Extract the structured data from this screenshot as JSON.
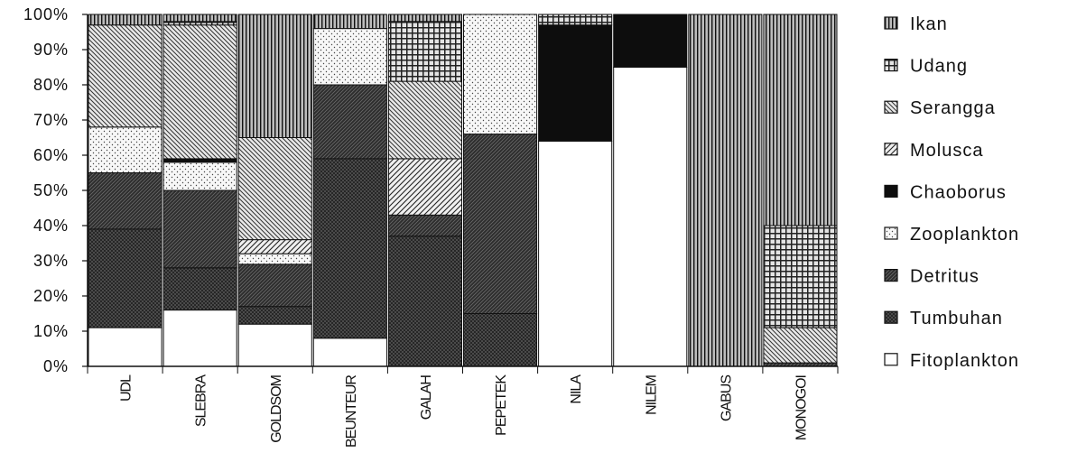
{
  "chart_data": {
    "type": "bar",
    "stacked": true,
    "percent": true,
    "title": "",
    "xlabel": "",
    "ylabel": "",
    "ylim": [
      0,
      100
    ],
    "yticks": [
      "0%",
      "10%",
      "20%",
      "30%",
      "40%",
      "50%",
      "60%",
      "70%",
      "80%",
      "90%",
      "100%"
    ],
    "grid": false,
    "legend_position": "right",
    "categories": [
      "UDL",
      "SLEBRA",
      "GOLDSOM",
      "BEUNTEUR",
      "GALAH",
      "PEPETEK",
      "NILA",
      "NILEM",
      "GABUS",
      "MONOGOI"
    ],
    "series": [
      {
        "name": "Fitoplankton",
        "fill": "white",
        "values": [
          11,
          16,
          12,
          8,
          0,
          0,
          64,
          85,
          0,
          0
        ]
      },
      {
        "name": "Tumbuhan",
        "fill": "crossdark",
        "values": [
          28,
          12,
          5,
          51,
          37,
          15,
          0,
          0,
          0,
          0
        ]
      },
      {
        "name": "Detritus",
        "fill": "darkdiag",
        "values": [
          16,
          22,
          12,
          21,
          6,
          51,
          0,
          0,
          0,
          1
        ]
      },
      {
        "name": "Zooplankton",
        "fill": "dots",
        "values": [
          13,
          8,
          3,
          16,
          0,
          34,
          0,
          0,
          0,
          0
        ]
      },
      {
        "name": "Chaoborus",
        "fill": "black",
        "values": [
          0,
          1,
          0,
          0,
          0,
          0,
          33,
          15,
          0,
          0
        ]
      },
      {
        "name": "Molusca",
        "fill": "diag",
        "values": [
          0,
          0,
          4,
          0,
          16,
          0,
          0,
          0,
          0,
          0
        ]
      },
      {
        "name": "Serangga",
        "fill": "backdiag",
        "values": [
          29,
          38,
          29,
          0,
          22,
          0,
          0,
          0,
          0,
          10
        ]
      },
      {
        "name": "Udang",
        "fill": "grid",
        "values": [
          0,
          1,
          0,
          0,
          17,
          0,
          3,
          0,
          0,
          29
        ]
      },
      {
        "name": "Ikan",
        "fill": "vlines",
        "values": [
          3,
          2,
          35,
          4,
          2,
          0,
          0,
          0,
          100,
          60
        ]
      }
    ],
    "legend_order": [
      "Ikan",
      "Udang",
      "Serangga",
      "Molusca",
      "Chaoborus",
      "Zooplankton",
      "Detritus",
      "Tumbuhan",
      "Fitoplankton"
    ]
  }
}
